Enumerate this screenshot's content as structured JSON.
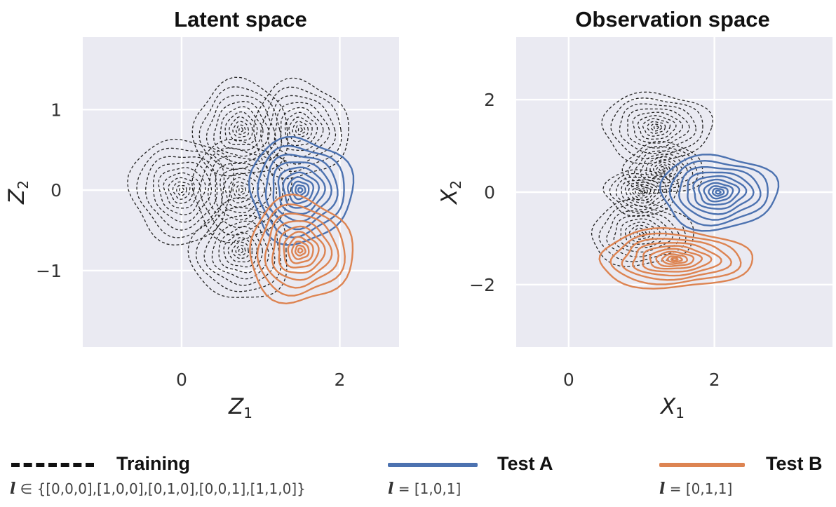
{
  "chart_data": [
    {
      "type": "contour",
      "title": "Latent space",
      "xlabel": "Z",
      "xlabel_sub": "1",
      "ylabel": "Z",
      "ylabel_sub": "2",
      "xlim": [
        -1.25,
        2.75
      ],
      "ylim": [
        -1.95,
        1.9
      ],
      "xticks": [
        {
          "value": 0,
          "label": "0"
        },
        {
          "value": 2,
          "label": "2"
        }
      ],
      "yticks": [
        {
          "value": 1,
          "label": "1"
        },
        {
          "value": 0,
          "label": "0"
        },
        {
          "value": -1,
          "label": "−1"
        }
      ],
      "series": [
        {
          "name": "Training",
          "color": "#222222",
          "style": "dashed",
          "levels": 10,
          "centers": [
            [
              0.0,
              0.0
            ],
            [
              0.75,
              0.0
            ],
            [
              1.5,
              0.75
            ],
            [
              0.75,
              0.75
            ],
            [
              0.75,
              -0.75
            ]
          ],
          "radii": [
            0.65,
            0.62,
            0.6,
            0.6,
            0.62
          ]
        },
        {
          "name": "Test A",
          "color": "#4c72b0",
          "style": "solid",
          "levels": 10,
          "centers": [
            [
              1.5,
              0.0
            ]
          ],
          "radii": [
            0.65
          ]
        },
        {
          "name": "Test B",
          "color": "#dd8452",
          "style": "solid",
          "levels": 10,
          "centers": [
            [
              1.5,
              -0.75
            ]
          ],
          "radii": [
            0.65
          ]
        }
      ]
    },
    {
      "type": "contour",
      "title": "Observation space",
      "xlabel": "X",
      "xlabel_sub": "1",
      "ylabel": "X",
      "ylabel_sub": "2",
      "xlim": [
        -0.72,
        3.62
      ],
      "ylim": [
        -3.35,
        3.35
      ],
      "xticks": [
        {
          "value": 0,
          "label": "0"
        },
        {
          "value": 2,
          "label": "2"
        }
      ],
      "yticks": [
        {
          "value": 2,
          "label": "2"
        },
        {
          "value": 0,
          "label": "0"
        },
        {
          "value": -2,
          "label": "−2"
        }
      ],
      "series": [
        {
          "name": "Training",
          "color": "#222222",
          "style": "dashed",
          "levels": 10,
          "centers": [
            [
              1.0,
              0.0
            ],
            [
              1.2,
              1.4
            ],
            [
              1.0,
              -0.9
            ],
            [
              1.3,
              0.5
            ]
          ],
          "radii": [
            0.5,
            0.75,
            0.7,
            0.55
          ]
        },
        {
          "name": "Test A",
          "color": "#4c72b0",
          "style": "solid",
          "levels": 10,
          "centers": [
            [
              2.05,
              0.0
            ]
          ],
          "radii": [
            0.8
          ]
        },
        {
          "name": "Test B",
          "color": "#dd8452",
          "style": "solid",
          "levels": 10,
          "centers": [
            [
              1.45,
              -1.45
            ]
          ],
          "radii": [
            1.05
          ]
        }
      ]
    }
  ],
  "legend": [
    {
      "key": "training",
      "label": "Training",
      "color": "#111111",
      "style": "dashed",
      "sub_symbol": "l",
      "sub_text": " ∈ {[0,0,0],[1,0,0],[0,1,0],[0,0,1],[1,1,0]}"
    },
    {
      "key": "test-a",
      "label": "Test A",
      "color": "#4c72b0",
      "style": "solid",
      "sub_symbol": "l",
      "sub_text": " = [1,0,1]"
    },
    {
      "key": "test-b",
      "label": "Test B",
      "color": "#dd8452",
      "style": "solid",
      "sub_symbol": "l",
      "sub_text": " = [0,1,1]"
    }
  ]
}
